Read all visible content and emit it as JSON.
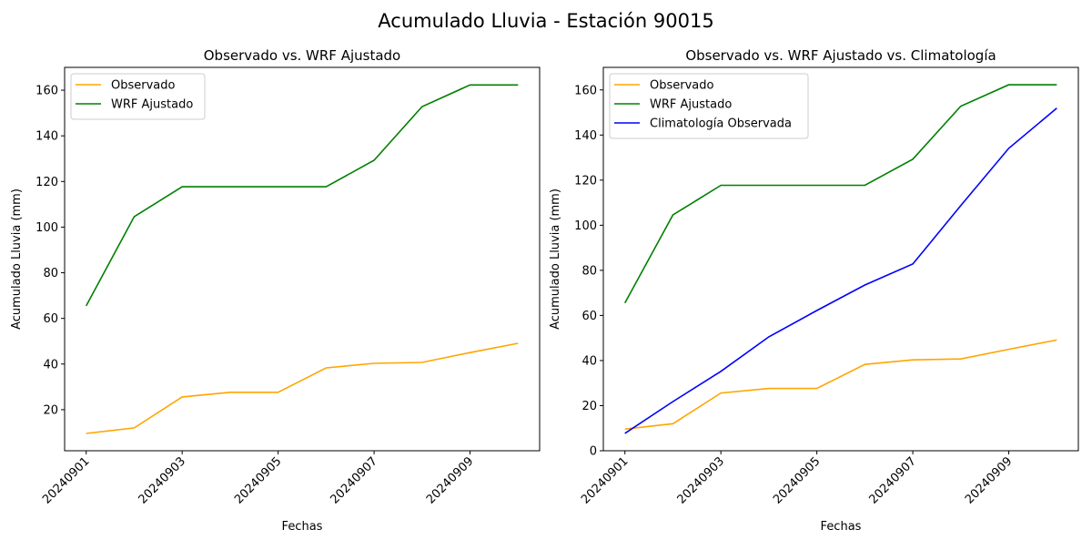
{
  "suptitle": "Acumulado Lluvia - Estación 90015",
  "chart_data": [
    {
      "type": "line",
      "title": "Observado vs. WRF Ajustado",
      "xlabel": "Fechas",
      "ylabel": "Acumulado Lluvia (mm)",
      "x": [
        "20240901",
        "20240902",
        "20240903",
        "20240904",
        "20240905",
        "20240906",
        "20240907",
        "20240908",
        "20240909",
        "20240910"
      ],
      "xticks": [
        "20240901",
        "20240903",
        "20240905",
        "20240907",
        "20240909"
      ],
      "yticks": [
        20,
        40,
        60,
        80,
        100,
        120,
        140,
        160
      ],
      "ylim": [
        2,
        170
      ],
      "legend": "top-left",
      "series": [
        {
          "name": "Observado",
          "color": "#ffa500",
          "values": [
            9.6,
            12.0,
            25.6,
            27.6,
            27.6,
            38.3,
            40.3,
            40.7,
            45.0,
            49.1
          ]
        },
        {
          "name": "WRF Ajustado",
          "color": "#008000",
          "values": [
            65.5,
            104.6,
            117.7,
            117.7,
            117.7,
            117.7,
            129.3,
            152.8,
            162.3,
            162.3
          ]
        }
      ]
    },
    {
      "type": "line",
      "title": "Observado vs. WRF Ajustado vs. Climatología",
      "xlabel": "Fechas",
      "ylabel": "Acumulado Lluvia (mm)",
      "x": [
        "20240901",
        "20240902",
        "20240903",
        "20240904",
        "20240905",
        "20240906",
        "20240907",
        "20240908",
        "20240909",
        "20240910"
      ],
      "xticks": [
        "20240901",
        "20240903",
        "20240905",
        "20240907",
        "20240909"
      ],
      "yticks": [
        0,
        20,
        40,
        60,
        80,
        100,
        120,
        140,
        160
      ],
      "ylim": [
        0,
        170
      ],
      "legend": "top-left",
      "series": [
        {
          "name": "Observado",
          "color": "#ffa500",
          "values": [
            9.6,
            12.0,
            25.6,
            27.6,
            27.6,
            38.3,
            40.3,
            40.7,
            45.0,
            49.1
          ]
        },
        {
          "name": "WRF Ajustado",
          "color": "#008000",
          "values": [
            65.5,
            104.6,
            117.7,
            117.7,
            117.7,
            117.7,
            129.3,
            152.8,
            162.3,
            162.3
          ]
        },
        {
          "name": "Climatología Observada",
          "color": "#0000ff",
          "values": [
            7.7,
            21.8,
            35.2,
            50.5,
            62.2,
            73.5,
            82.8,
            108.7,
            134.1,
            151.9
          ]
        }
      ]
    }
  ]
}
